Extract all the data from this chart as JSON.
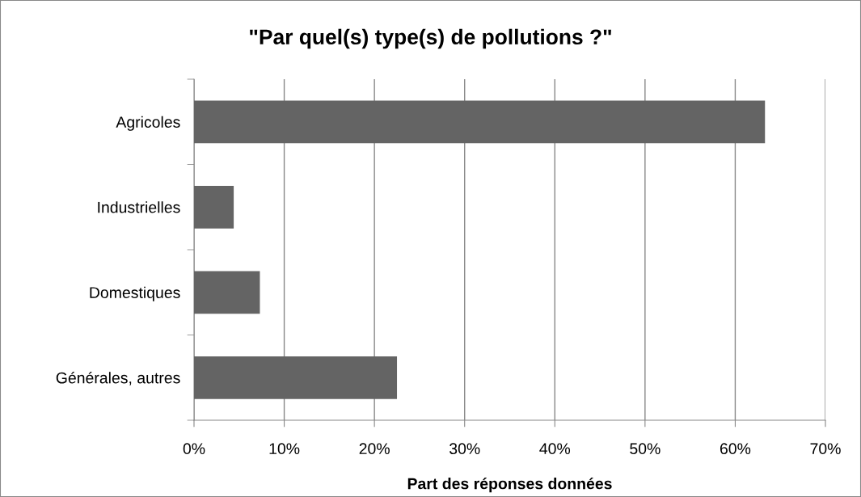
{
  "chart_data": {
    "type": "bar",
    "orientation": "horizontal",
    "title": "\"Par quel(s) type(s) de pollutions ?\"",
    "xlabel": "Part des réponses données",
    "categories": [
      "Agricoles",
      "Industrielles",
      "Domestiques",
      "Générales, autres"
    ],
    "values": [
      63.3,
      4.4,
      7.3,
      22.5
    ],
    "color": "#646464",
    "xlim": [
      0,
      70
    ],
    "xticks": [
      {
        "value": 0,
        "label": "0%"
      },
      {
        "value": 10,
        "label": "10%"
      },
      {
        "value": 20,
        "label": "20%"
      },
      {
        "value": 30,
        "label": "30%"
      },
      {
        "value": 40,
        "label": "40%"
      },
      {
        "value": 50,
        "label": "50%"
      },
      {
        "value": 60,
        "label": "60%"
      },
      {
        "value": 70,
        "label": "70%"
      }
    ],
    "grid": "x",
    "legend": false
  }
}
